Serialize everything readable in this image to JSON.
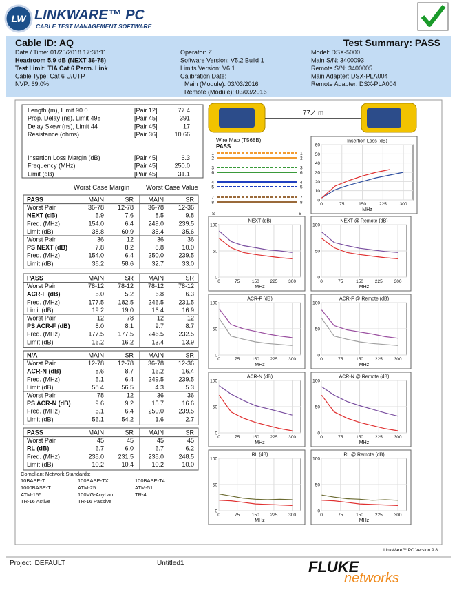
{
  "header": {
    "logo_mark": "LW",
    "product": "LINKWARE™ PC",
    "tagline": "CABLE TEST MANAGEMENT SOFTWARE"
  },
  "summary": {
    "cable_id": "Cable ID: AQ",
    "result": "Test Summary: PASS",
    "left": [
      "Date / Time: 01/25/2018  17:38:11",
      "Headroom 5.9 dB (NEXT 36-78)",
      "Test Limit: TIA Cat 6 Perm. Link",
      "Cable Type: Cat 6 U/UTP",
      "NVP: 69.0%"
    ],
    "middle": [
      "Operator: Z",
      "Software Version: V5.2 Build 1",
      "Limits Version: V6.1",
      "Calibration Date:",
      "Main (Module): 03/03/2016",
      "Remote (Module): 03/03/2016"
    ],
    "right": [
      "Model: DSX-5000",
      "Main S/N: 3400093",
      "Remote S/N: 3400005",
      "Main Adapter: DSX-PLA004",
      "Remote Adapter: DSX-PLA004"
    ]
  },
  "measurements": {
    "rows": [
      [
        "Length (m), Limit 90.0",
        "[Pair 12]",
        "77.4"
      ],
      [
        "Prop. Delay (ns), Limit 498",
        "[Pair 45]",
        "391"
      ],
      [
        "Delay Skew (ns), Limit 44",
        "[Pair 45]",
        "17"
      ],
      [
        "Resistance (ohms)",
        "[Pair 36]",
        "10.66"
      ],
      [
        "Insertion Loss Margin (dB)",
        "[Pair 45]",
        "6.3"
      ],
      [
        "Frequency (MHz)",
        "[Pair 45]",
        "250.0"
      ],
      [
        "Limit (dB)",
        "[Pair 45]",
        "31.1"
      ]
    ]
  },
  "worst_case": {
    "margin_heading": "Worst Case Margin",
    "value_heading": "Worst Case Value",
    "sections": [
      {
        "header": [
          "PASS",
          "MAIN",
          "SR",
          "MAIN",
          "SR"
        ],
        "rows": [
          [
            "Worst Pair",
            "36-78",
            "12-78",
            "36-78",
            "12-36"
          ],
          [
            "NEXT (dB)",
            "5.9",
            "7.6",
            "8.5",
            "9.8"
          ],
          [
            "Freq. (MHz)",
            "154.0",
            "6.4",
            "249.0",
            "239.5"
          ],
          [
            "Limit (dB)",
            "38.8",
            "60.9",
            "35.4",
            "35.6"
          ],
          [
            "Worst Pair",
            "36",
            "12",
            "36",
            "36"
          ],
          [
            "PS NEXT (dB)",
            "7.8",
            "8.2",
            "8.8",
            "10.0"
          ],
          [
            "Freq. (MHz)",
            "154.0",
            "6.4",
            "250.0",
            "239.5"
          ],
          [
            "Limit (dB)",
            "36.2",
            "58.6",
            "32.7",
            "33.0"
          ]
        ]
      },
      {
        "header": [
          "PASS",
          "MAIN",
          "SR",
          "MAIN",
          "SR"
        ],
        "rows": [
          [
            "Worst Pair",
            "78-12",
            "78-12",
            "78-12",
            "78-12"
          ],
          [
            "ACR-F (dB)",
            "5.0",
            "5.2",
            "6.8",
            "6.3"
          ],
          [
            "Freq. (MHz)",
            "177.5",
            "182.5",
            "246.5",
            "231.5"
          ],
          [
            "Limit (dB)",
            "19.2",
            "19.0",
            "16.4",
            "16.9"
          ],
          [
            "Worst Pair",
            "12",
            "78",
            "12",
            "12"
          ],
          [
            "PS ACR-F (dB)",
            "8.0",
            "8.1",
            "9.7",
            "8.7"
          ],
          [
            "Freq. (MHz)",
            "177.5",
            "177.5",
            "246.5",
            "232.5"
          ],
          [
            "Limit (dB)",
            "16.2",
            "16.2",
            "13.4",
            "13.9"
          ]
        ]
      },
      {
        "header": [
          "N/A",
          "MAIN",
          "SR",
          "MAIN",
          "SR"
        ],
        "rows": [
          [
            "Worst Pair",
            "12-78",
            "12-78",
            "36-78",
            "12-36"
          ],
          [
            "ACR-N (dB)",
            "8.6",
            "8.7",
            "16.2",
            "16.4"
          ],
          [
            "Freq. (MHz)",
            "5.1",
            "6.4",
            "249.5",
            "239.5"
          ],
          [
            "Limit (dB)",
            "58.4",
            "56.5",
            "4.3",
            "5.3"
          ],
          [
            "Worst Pair",
            "78",
            "12",
            "36",
            "36"
          ],
          [
            "PS ACR-N (dB)",
            "9.6",
            "9.2",
            "15.7",
            "16.6"
          ],
          [
            "Freq. (MHz)",
            "5.1",
            "6.4",
            "250.0",
            "239.5"
          ],
          [
            "Limit (dB)",
            "56.1",
            "54.2",
            "1.6",
            "2.7"
          ]
        ]
      },
      {
        "header": [
          "PASS",
          "MAIN",
          "SR",
          "MAIN",
          "SR"
        ],
        "rows": [
          [
            "Worst Pair",
            "45",
            "45",
            "45",
            "45"
          ],
          [
            "RL (dB)",
            "6.7",
            "6.0",
            "6.7",
            "6.2"
          ],
          [
            "Freq. (MHz)",
            "238.0",
            "231.5",
            "238.0",
            "248.5"
          ],
          [
            "Limit (dB)",
            "10.2",
            "10.4",
            "10.2",
            "10.0"
          ]
        ]
      }
    ]
  },
  "standards": {
    "title": "Compliant Network Standards:",
    "items": [
      "10BASE-T",
      "100BASE-TX",
      "100BASE-T4",
      "1000BASE-T",
      "ATM-25",
      "ATM-51",
      "ATM-155",
      "100VG-AnyLan",
      "TR-4",
      "TR-16 Active",
      "TR-16 Passive"
    ]
  },
  "tester": {
    "length": "77.4 m"
  },
  "wire_map": {
    "title": "Wire Map (T568B)",
    "result": "PASS",
    "pins": [
      1,
      2,
      3,
      6,
      4,
      5,
      7,
      8
    ],
    "shield": "S"
  },
  "footer": {
    "version": "LinkWare™ PC Version 9.8",
    "project": "Project: DEFAULT",
    "file": "Untitled1",
    "brand": "FLUKE",
    "brand_sub": "networks"
  },
  "chart_data": [
    {
      "type": "line",
      "title": "Insertion Loss (dB)",
      "x_label": "MHz",
      "x": [
        1,
        50,
        100,
        150,
        200,
        250,
        300
      ],
      "xlim": [
        0,
        335
      ],
      "xticks": [
        0,
        75,
        150,
        225,
        300
      ],
      "ylim": [
        0,
        60
      ],
      "yticks": [
        0,
        10,
        20,
        30,
        40,
        50,
        60
      ],
      "grid": true,
      "series": [
        {
          "color": "#3050a0",
          "values": [
            2,
            11,
            16,
            20,
            24,
            27,
            30
          ]
        },
        {
          "color": "#e03030",
          "values": [
            2,
            15,
            21,
            26,
            30,
            33,
            null
          ]
        }
      ]
    },
    {
      "type": "line",
      "title": "NEXT (dB)",
      "x_label": "MHz",
      "x": [
        1,
        50,
        100,
        150,
        200,
        250,
        300
      ],
      "xlim": [
        0,
        335
      ],
      "xticks": [
        0,
        75,
        150,
        225,
        300
      ],
      "ylim": [
        0,
        100
      ],
      "yticks": [
        0,
        50,
        100
      ],
      "grid": true,
      "series": [
        {
          "color": "#7a4fa0",
          "values": [
            88,
            68,
            60,
            56,
            52,
            50,
            47
          ]
        },
        {
          "color": "#e03030",
          "values": [
            74,
            56,
            47,
            43,
            40,
            37,
            35
          ]
        }
      ]
    },
    {
      "type": "line",
      "title": "NEXT @ Remote (dB)",
      "x_label": "MHz",
      "x": [
        1,
        50,
        100,
        150,
        200,
        250,
        300
      ],
      "xlim": [
        0,
        335
      ],
      "xticks": [
        0,
        75,
        150,
        225,
        300
      ],
      "ylim": [
        0,
        100
      ],
      "yticks": [
        0,
        50,
        100
      ],
      "grid": true,
      "series": [
        {
          "color": "#7a4fa0",
          "values": [
            86,
            66,
            60,
            55,
            52,
            49,
            47
          ]
        },
        {
          "color": "#e03030",
          "values": [
            74,
            56,
            47,
            43,
            40,
            37,
            35
          ]
        }
      ]
    },
    {
      "type": "line",
      "title": "ACR-F (dB)",
      "x_label": "MHz",
      "x": [
        1,
        50,
        100,
        150,
        200,
        250,
        300
      ],
      "xlim": [
        0,
        335
      ],
      "xticks": [
        0,
        75,
        150,
        225,
        300
      ],
      "ylim": [
        0,
        100
      ],
      "yticks": [
        0,
        50,
        100
      ],
      "grid": true,
      "series": [
        {
          "color": "#9a4fa0",
          "values": [
            88,
            58,
            50,
            45,
            40,
            36,
            33
          ]
        },
        {
          "color": "#a0a0a0",
          "values": [
            70,
            36,
            30,
            25,
            22,
            20,
            18
          ]
        }
      ]
    },
    {
      "type": "line",
      "title": "ACR-F @ Remote (dB)",
      "x_label": "MHz",
      "x": [
        1,
        50,
        100,
        150,
        200,
        250,
        300
      ],
      "xlim": [
        0,
        335
      ],
      "xticks": [
        0,
        75,
        150,
        225,
        300
      ],
      "ylim": [
        0,
        100
      ],
      "yticks": [
        0,
        50,
        100
      ],
      "grid": true,
      "series": [
        {
          "color": "#9a4fa0",
          "values": [
            86,
            56,
            48,
            44,
            40,
            35,
            32
          ]
        },
        {
          "color": "#a0a0a0",
          "values": [
            70,
            36,
            30,
            25,
            22,
            20,
            18
          ]
        }
      ]
    },
    {
      "type": "line",
      "title": "ACR-N (dB)",
      "x_label": "MHz",
      "x": [
        1,
        50,
        100,
        150,
        200,
        250,
        300
      ],
      "xlim": [
        0,
        335
      ],
      "xticks": [
        0,
        75,
        150,
        225,
        300
      ],
      "ylim": [
        0,
        100
      ],
      "yticks": [
        0,
        50,
        100
      ],
      "grid": true,
      "series": [
        {
          "color": "#7a4fa0",
          "values": [
            90,
            74,
            62,
            52,
            46,
            40,
            34
          ]
        },
        {
          "color": "#e03030",
          "values": [
            72,
            40,
            28,
            20,
            14,
            8,
            4
          ]
        }
      ]
    },
    {
      "type": "line",
      "title": "ACR-N @ Remote (dB)",
      "x_label": "MHz",
      "x": [
        1,
        50,
        100,
        150,
        200,
        250,
        300
      ],
      "xlim": [
        0,
        335
      ],
      "xticks": [
        0,
        75,
        150,
        225,
        300
      ],
      "ylim": [
        0,
        100
      ],
      "yticks": [
        0,
        50,
        100
      ],
      "grid": true,
      "series": [
        {
          "color": "#7a4fa0",
          "values": [
            88,
            72,
            60,
            52,
            45,
            38,
            32
          ]
        },
        {
          "color": "#e03030",
          "values": [
            72,
            40,
            28,
            20,
            14,
            8,
            4
          ]
        }
      ]
    },
    {
      "type": "line",
      "title": "RL (dB)",
      "x_label": "MHz",
      "x": [
        1,
        50,
        100,
        150,
        200,
        250,
        300
      ],
      "xlim": [
        0,
        335
      ],
      "xticks": [
        0,
        75,
        150,
        225,
        300
      ],
      "ylim": [
        0,
        100
      ],
      "yticks": [
        0,
        50,
        100
      ],
      "grid": true,
      "series": [
        {
          "color": "#6a6a30",
          "values": [
            32,
            28,
            24,
            22,
            21,
            22,
            21
          ]
        },
        {
          "color": "#e03030",
          "values": [
            20,
            19,
            16,
            13,
            12,
            11,
            10
          ]
        }
      ]
    },
    {
      "type": "line",
      "title": "RL @ Remote (dB)",
      "x_label": "MHz",
      "x": [
        1,
        50,
        100,
        150,
        200,
        250,
        300
      ],
      "xlim": [
        0,
        335
      ],
      "xticks": [
        0,
        75,
        150,
        225,
        300
      ],
      "ylim": [
        0,
        100
      ],
      "yticks": [
        0,
        50,
        100
      ],
      "grid": true,
      "series": [
        {
          "color": "#6a6a30",
          "values": [
            30,
            26,
            23,
            22,
            20,
            21,
            20
          ]
        },
        {
          "color": "#e03030",
          "values": [
            20,
            19,
            16,
            13,
            12,
            11,
            10
          ]
        }
      ]
    }
  ]
}
